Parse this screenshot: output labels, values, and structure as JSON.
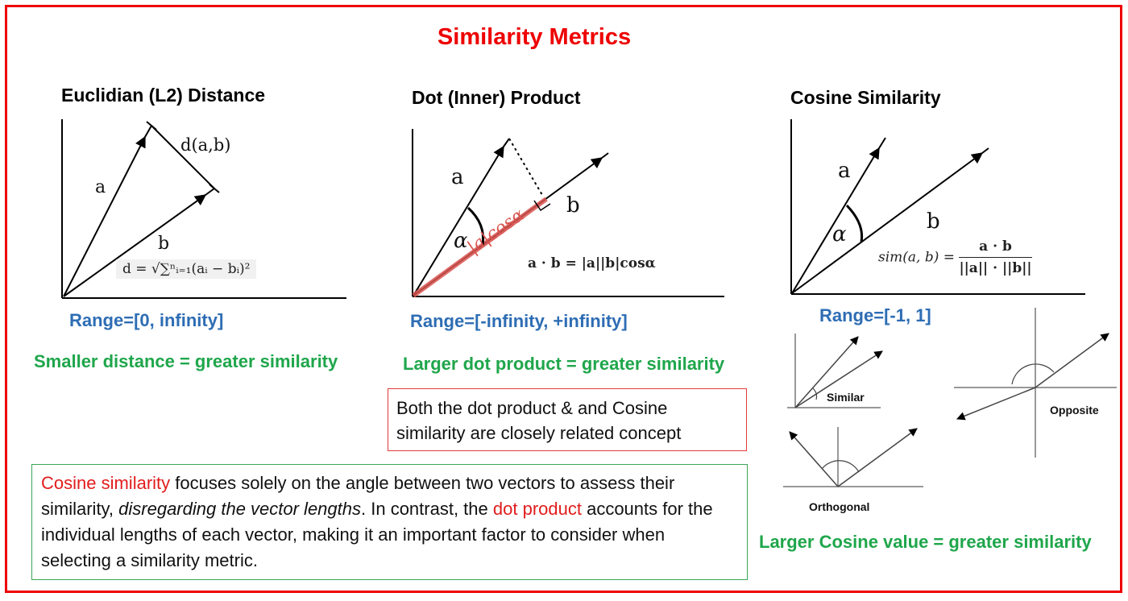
{
  "title": "Similarity Metrics",
  "euclidean": {
    "heading": "Euclidian (L2) Distance",
    "label_a": "a",
    "label_b": "b",
    "label_d": "d(a,b)",
    "formula": "d = √∑ⁿᵢ₌₁(aᵢ − bᵢ)²",
    "range": "Range=[0, infinity]",
    "note": "Smaller distance = greater similarity"
  },
  "dot": {
    "heading": "Dot (Inner) Product",
    "label_a": "a",
    "label_b": "b",
    "label_alpha": "α",
    "label_proj": "|a|cosα",
    "formula": "a · b = |a||b|cosα",
    "range": "Range=[-infinity, +infinity]",
    "note": "Larger dot product = greater similarity"
  },
  "cosine": {
    "heading": "Cosine Similarity",
    "label_a": "a",
    "label_b": "b",
    "label_alpha": "α",
    "formula_lhs": "sim(a, b) =",
    "formula_num": "a · b",
    "formula_den": "||a|| · ||b||",
    "range": "Range=[-1, 1]",
    "similar_label": "Similar",
    "opposite_label": "Opposite",
    "orthogonal_label": "Orthogonal",
    "note": "Larger Cosine value = greater similarity"
  },
  "red_box": {
    "text": "Both the dot product & and Cosine similarity are closely related concept"
  },
  "green_box": {
    "part1_red": "Cosine similarity",
    "part2": " focuses solely on the angle between two vectors to assess their similarity, ",
    "part3_italic": "disregarding the vector lengths",
    "part4": ". In contrast, the ",
    "part5_red": "dot product",
    "part6": " accounts for the individual lengths of each vector, making it an important factor to consider when selecting a similarity metric."
  },
  "colors": {
    "frame": "#ee0000",
    "range_blue": "#2e6db4",
    "note_green": "#1fa64b",
    "projection_red": "#d9534f"
  }
}
